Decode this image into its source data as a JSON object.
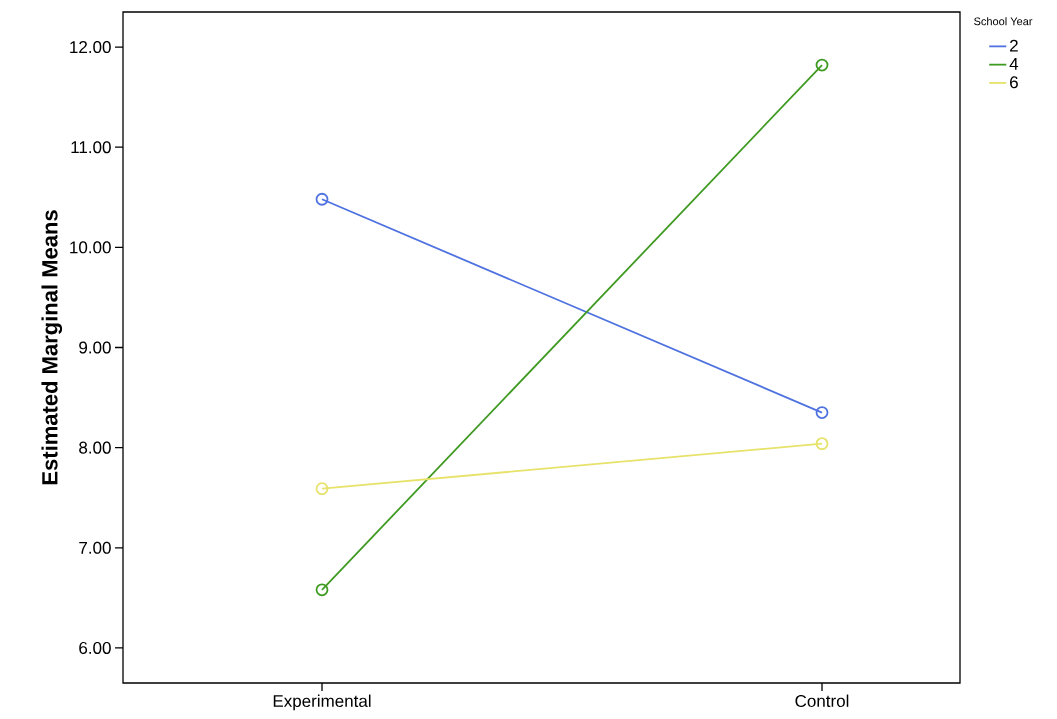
{
  "chart_data": {
    "type": "line",
    "ylabel": "Estimated Marginal Means",
    "legend_title": "School Year",
    "categories": [
      "Experimental",
      "Control"
    ],
    "series": [
      {
        "name": "2",
        "color": "#4f72e0",
        "values": [
          10.48,
          8.35
        ]
      },
      {
        "name": "4",
        "color": "#3f9a22",
        "values": [
          6.58,
          11.82
        ]
      },
      {
        "name": "6",
        "color": "#e6e26a",
        "values": [
          7.59,
          8.04
        ]
      }
    ],
    "ylim": [
      5.65,
      12.35
    ],
    "yticks": [
      {
        "value": 6,
        "label": "6.00"
      },
      {
        "value": 7,
        "label": "7.00"
      },
      {
        "value": 8,
        "label": "8.00"
      },
      {
        "value": 9,
        "label": "9.00"
      },
      {
        "value": 10,
        "label": "10.00"
      },
      {
        "value": 11,
        "label": "11.00"
      },
      {
        "value": 12,
        "label": "12.00"
      }
    ],
    "marker": "circle",
    "line_style": "solid",
    "legend": "top right",
    "grid": false
  }
}
